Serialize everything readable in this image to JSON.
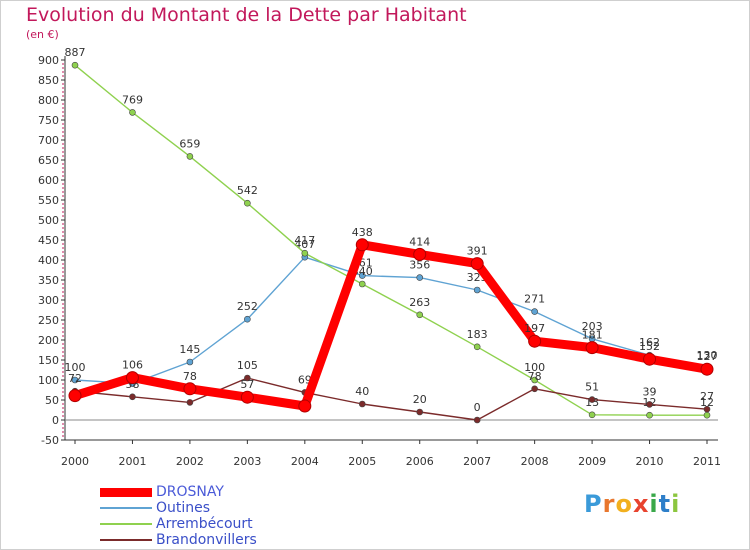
{
  "header": {
    "title": "Evolution du Montant de la Dette par Habitant",
    "unit": "(en €)"
  },
  "brand": {
    "letters": [
      "P",
      "r",
      "o",
      "x",
      "i",
      "t",
      "i"
    ],
    "colors": [
      "#3a9ad9",
      "#e8772e",
      "#f2b01e",
      "#e8432e",
      "#3aa84a",
      "#2e7fc9",
      "#8cc63f"
    ]
  },
  "chart_data": {
    "type": "line",
    "title": "Evolution du Montant de la Dette par Habitant",
    "ylabel": "(en €)",
    "xlabel": "",
    "x": [
      "2000",
      "2001",
      "2002",
      "2003",
      "2004",
      "2005",
      "2006",
      "2007",
      "2008",
      "2009",
      "2010",
      "2011"
    ],
    "ylim": [
      -50,
      900
    ],
    "yticks": [
      -50,
      0,
      50,
      100,
      150,
      200,
      250,
      300,
      350,
      400,
      450,
      500,
      550,
      600,
      650,
      700,
      750,
      800,
      850,
      900
    ],
    "grid": false,
    "legend_position": "bottom-left",
    "series": [
      {
        "name": "Outines",
        "color": "#5fa3d3",
        "values": [
          100,
          91,
          145,
          252,
          407,
          361,
          356,
          325,
          271,
          203,
          162,
          130
        ],
        "labels": [
          "100",
          "",
          "145",
          "252",
          "407",
          "361",
          "356",
          "325",
          "271",
          "203",
          "162",
          "130"
        ]
      },
      {
        "name": "Arrembécourt",
        "color": "#8fd14f",
        "values": [
          887,
          769,
          659,
          542,
          417,
          340,
          263,
          183,
          100,
          13,
          12,
          12
        ],
        "labels": [
          "887",
          "769",
          "659",
          "542",
          "417",
          "340",
          "263",
          "183",
          "100",
          "13",
          "12",
          "12"
        ]
      },
      {
        "name": "Brandonvillers",
        "color": "#7b2b2b",
        "values": [
          72,
          58,
          44,
          105,
          69,
          40,
          20,
          0,
          78,
          51,
          39,
          27
        ],
        "labels": [
          "72",
          "58",
          "",
          "105",
          "69",
          "40",
          "20",
          "0",
          "78",
          "51",
          "39",
          "27"
        ]
      },
      {
        "name": "DROSNAY",
        "color": "#ff0000",
        "values": [
          61,
          106,
          78,
          57,
          35,
          438,
          414,
          391,
          197,
          181,
          152,
          127
        ],
        "labels": [
          "",
          "106",
          "78",
          "57",
          "",
          "438",
          "414",
          "391",
          "197",
          "181",
          "152",
          "127"
        ]
      }
    ],
    "legend_order": [
      "DROSNAY",
      "Outines",
      "Arrembécourt",
      "Brandonvillers"
    ]
  }
}
